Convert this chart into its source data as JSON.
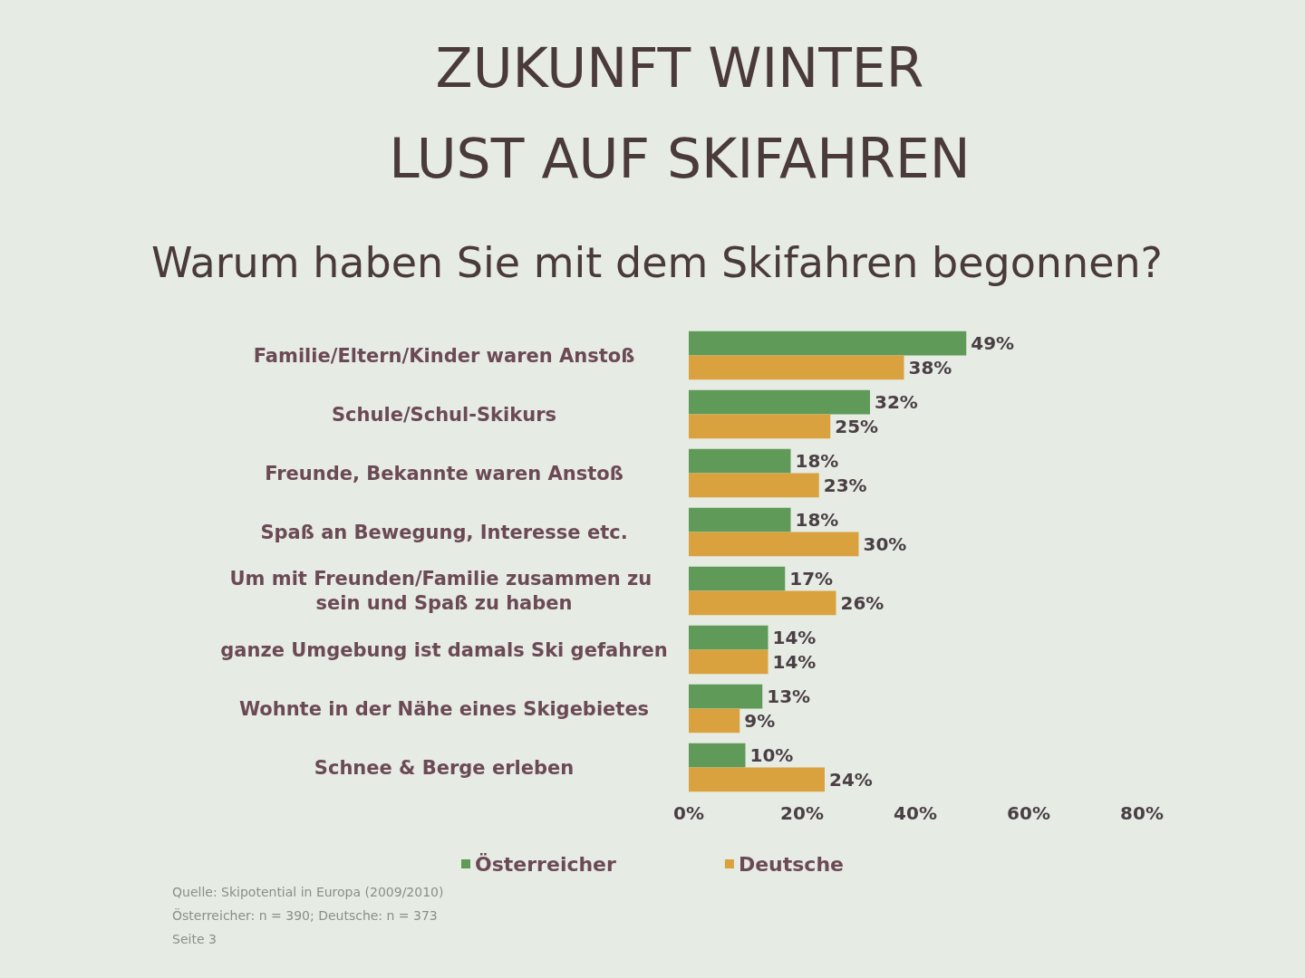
{
  "chart_data": {
    "type": "bar",
    "orientation": "horizontal",
    "title": "ZUKUNFT WINTER\nLUST AUF SKIFAHREN",
    "subtitle": "Warum haben Sie mit dem Skifahren begonnen?",
    "categories": [
      "Familie/Eltern/Kinder waren Anstoß",
      "Schule/Schul-Skikurs",
      "Freunde, Bekannte waren Anstoß",
      "Spaß an Bewegung, Interesse etc.",
      "Um mit Freunden/Familie zusammen zu sein und Spaß zu haben",
      "ganze Umgebung ist damals Ski gefahren",
      "Wohnte in der Nähe eines Skigebietes",
      "Schnee & Berge erleben"
    ],
    "series": [
      {
        "name": "Österreicher",
        "color": "#5f9a58",
        "values": [
          49,
          32,
          18,
          18,
          17,
          14,
          13,
          10
        ],
        "value_labels": [
          "49%",
          "32%",
          "18%",
          "18%",
          "17%",
          "14%",
          "13%",
          "10%"
        ]
      },
      {
        "name": "Deutsche",
        "color": "#d9a23e",
        "values": [
          38,
          25,
          23,
          30,
          26,
          14,
          9,
          24
        ],
        "value_labels": [
          "38%",
          "25%",
          "23%",
          "30%",
          "26%",
          "14%",
          "9%",
          "24%"
        ]
      }
    ],
    "xlim": [
      0,
      80
    ],
    "xticks": [
      {
        "value": 0,
        "label": "0%"
      },
      {
        "value": 20,
        "label": "20%"
      },
      {
        "value": 40,
        "label": "40%"
      },
      {
        "value": 60,
        "label": "60%"
      },
      {
        "value": 80,
        "label": "80%"
      }
    ],
    "grid": false,
    "legend": "bottom",
    "annotations": [
      "Quelle: Skipotential in Europa (2009/2010)",
      "Österreicher: n = 390; Deutsche: n = 373",
      "Seite 3"
    ]
  }
}
